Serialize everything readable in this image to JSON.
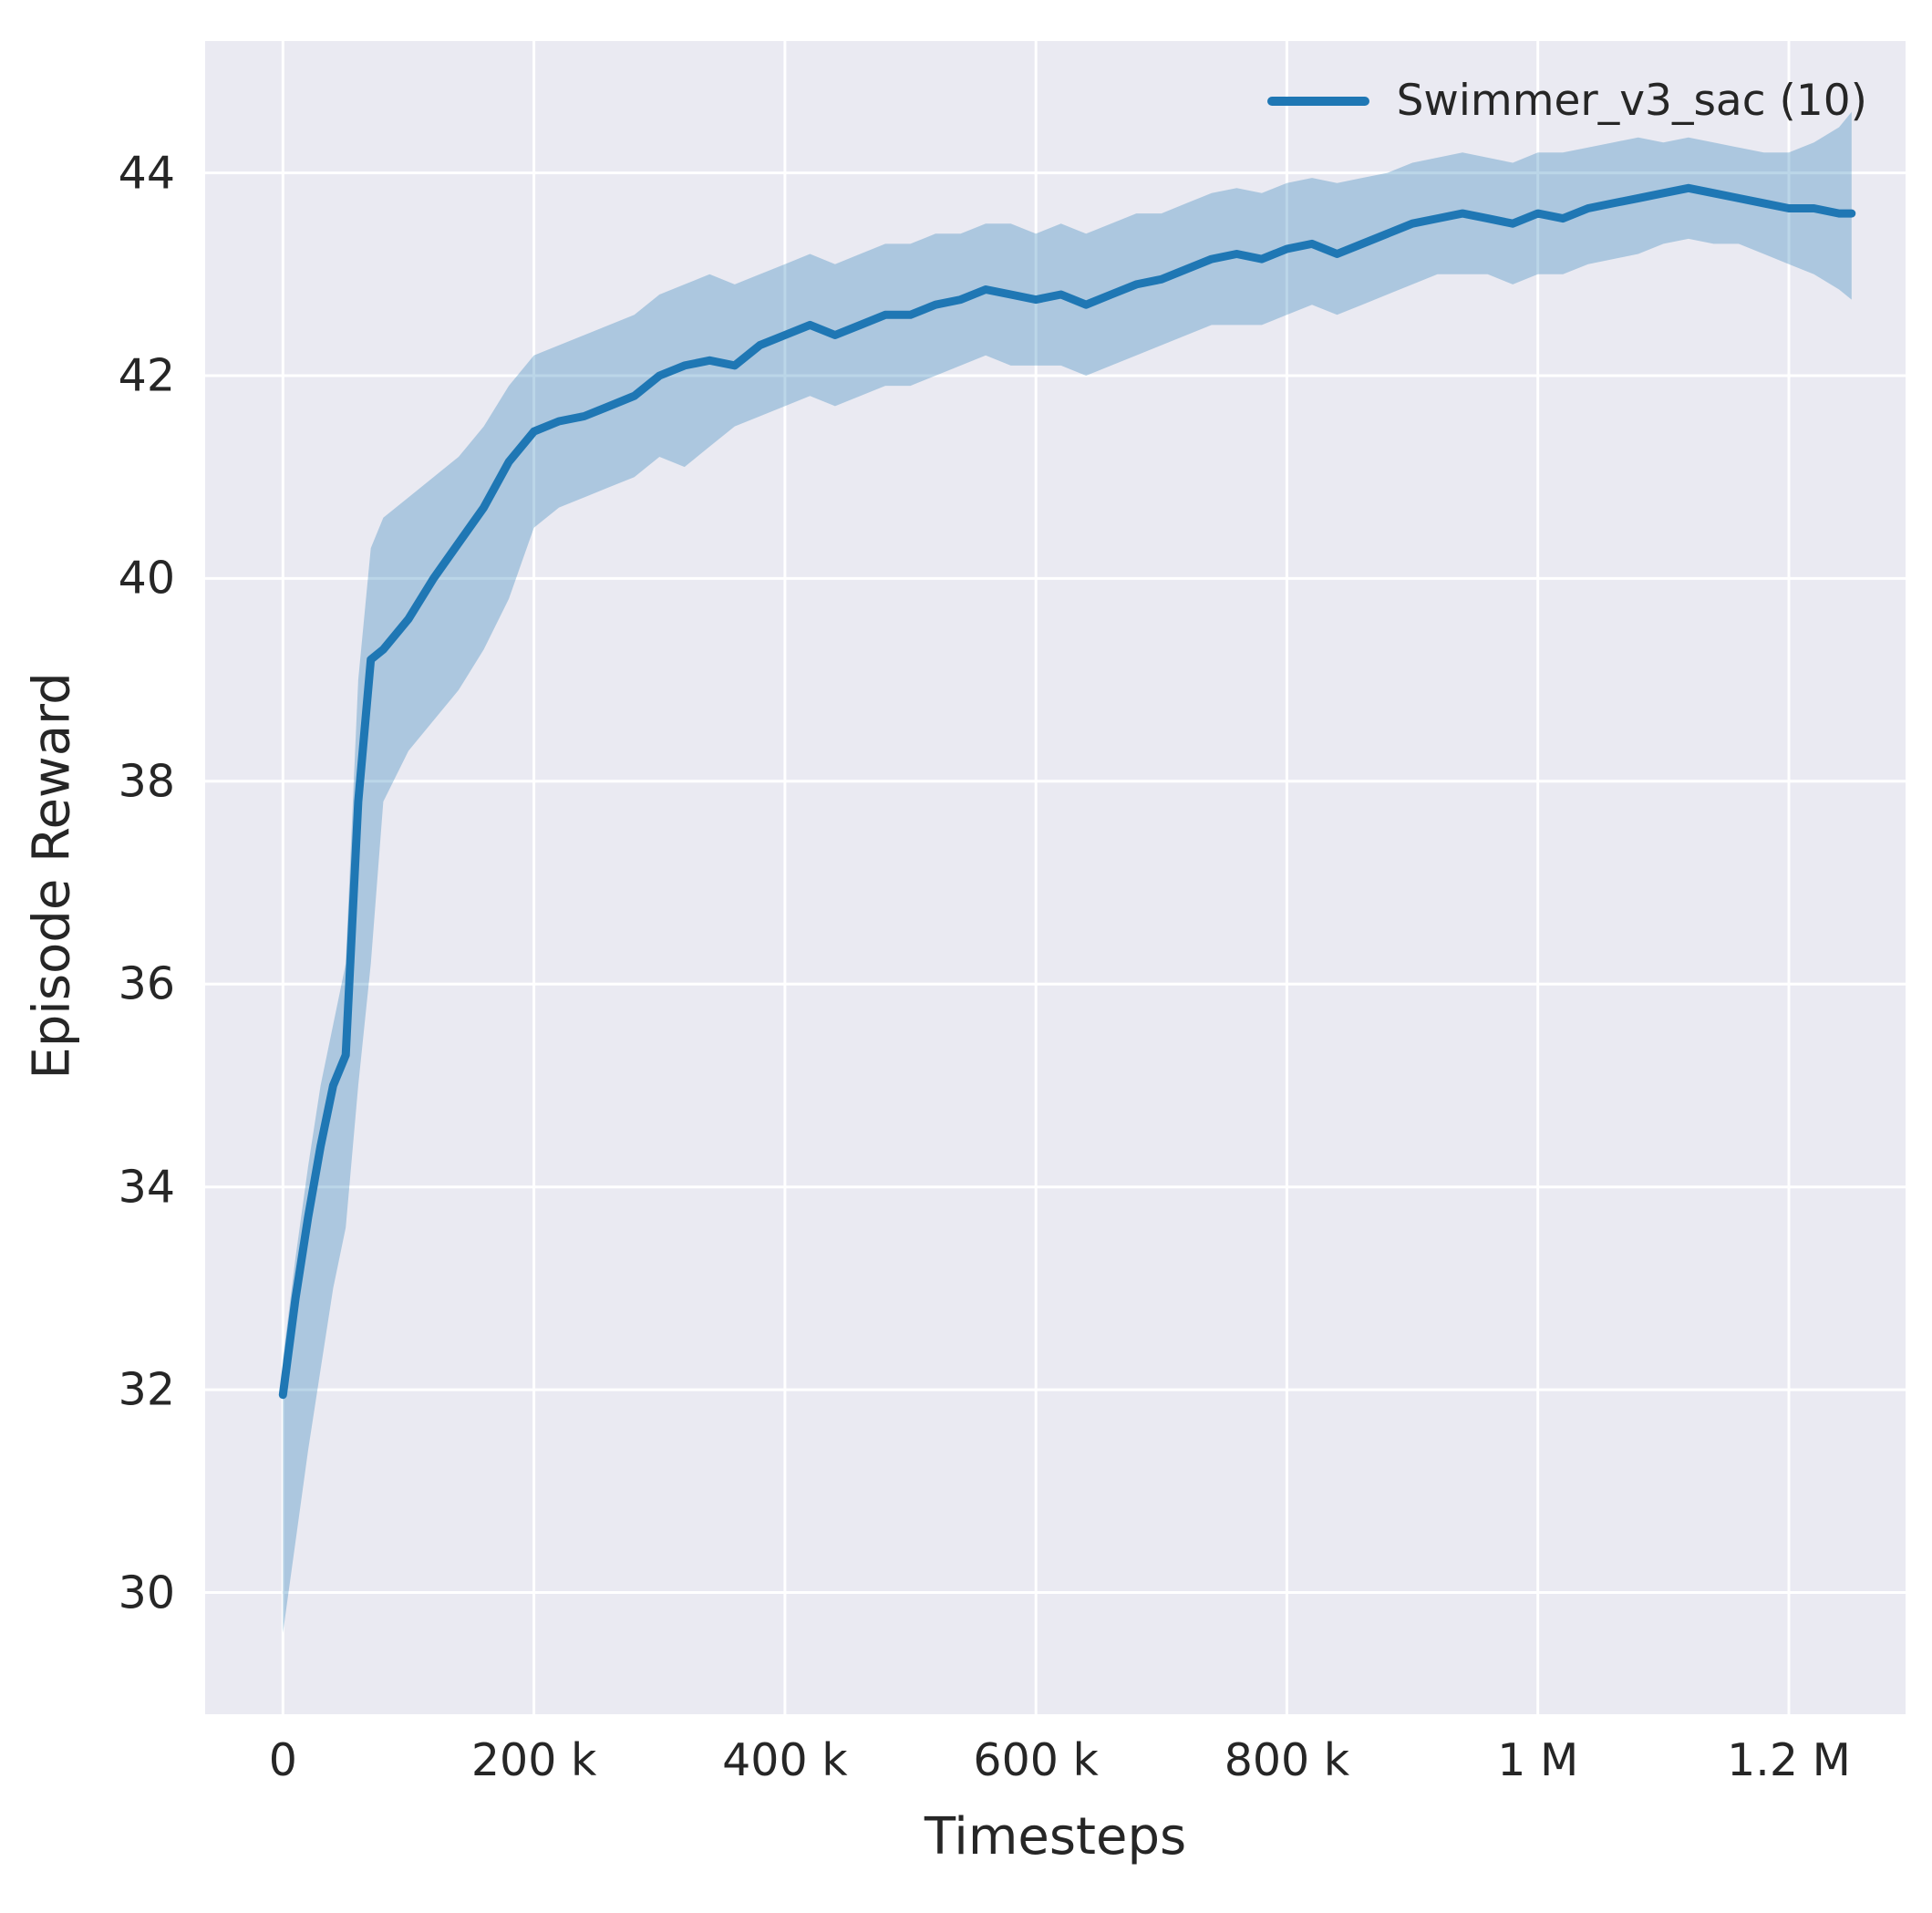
{
  "figure": {
    "background": "#ffffff",
    "plot_background": "#eaeaf2",
    "grid_color": "#ffffff",
    "text_color": "#262626"
  },
  "chart_data": {
    "type": "line",
    "title": "",
    "xlabel": "Timesteps",
    "ylabel": "Episode Reward",
    "legend": {
      "position": "upper right",
      "entries": [
        "Swimmer_v3_sac (10)"
      ]
    },
    "line_color": "#1f77b4",
    "band_color": "#1f77b4",
    "band_opacity": 0.3,
    "grid": true,
    "xlim": [
      -62000,
      1293000
    ],
    "ylim": [
      28.8,
      45.3
    ],
    "xticks": {
      "values": [
        0,
        200000,
        400000,
        600000,
        800000,
        1000000,
        1200000
      ],
      "labels": [
        "0",
        "200 k",
        "400 k",
        "600 k",
        "800 k",
        "1 M",
        "1.2 M"
      ]
    },
    "yticks": {
      "values": [
        30,
        32,
        34,
        36,
        38,
        40,
        42,
        44
      ],
      "labels": [
        "30",
        "32",
        "34",
        "36",
        "38",
        "40",
        "42",
        "44"
      ]
    },
    "x": [
      0,
      10000,
      20000,
      30000,
      40000,
      50000,
      60000,
      70000,
      80000,
      100000,
      120000,
      140000,
      160000,
      180000,
      200000,
      220000,
      240000,
      260000,
      280000,
      300000,
      320000,
      340000,
      360000,
      380000,
      400000,
      420000,
      440000,
      460000,
      480000,
      500000,
      520000,
      540000,
      560000,
      580000,
      600000,
      620000,
      640000,
      660000,
      680000,
      700000,
      720000,
      740000,
      760000,
      780000,
      800000,
      820000,
      840000,
      860000,
      880000,
      900000,
      920000,
      940000,
      960000,
      980000,
      1000000,
      1020000,
      1040000,
      1060000,
      1080000,
      1100000,
      1120000,
      1140000,
      1160000,
      1180000,
      1200000,
      1220000,
      1240000,
      1250000
    ],
    "series": [
      {
        "name": "Swimmer_v3_sac (10)",
        "values": [
          31.95,
          32.9,
          33.7,
          34.4,
          35.0,
          35.3,
          37.8,
          39.2,
          39.3,
          39.6,
          40.0,
          40.35,
          40.7,
          41.15,
          41.45,
          41.55,
          41.6,
          41.7,
          41.8,
          42.0,
          42.1,
          42.15,
          42.1,
          42.3,
          42.4,
          42.5,
          42.4,
          42.5,
          42.6,
          42.6,
          42.7,
          42.75,
          42.85,
          42.8,
          42.75,
          42.8,
          42.7,
          42.8,
          42.9,
          42.95,
          43.05,
          43.15,
          43.2,
          43.15,
          43.25,
          43.3,
          43.2,
          43.3,
          43.4,
          43.5,
          43.55,
          43.6,
          43.55,
          43.5,
          43.6,
          43.55,
          43.65,
          43.7,
          43.75,
          43.8,
          43.85,
          43.8,
          43.75,
          43.7,
          43.65,
          43.65,
          43.6,
          43.6
        ]
      }
    ],
    "band": {
      "lower": [
        29.6,
        30.5,
        31.4,
        32.2,
        33.0,
        33.6,
        35.0,
        36.2,
        37.8,
        38.3,
        38.6,
        38.9,
        39.3,
        39.8,
        40.5,
        40.7,
        40.8,
        40.9,
        41.0,
        41.2,
        41.1,
        41.3,
        41.5,
        41.6,
        41.7,
        41.8,
        41.7,
        41.8,
        41.9,
        41.9,
        42.0,
        42.1,
        42.2,
        42.1,
        42.1,
        42.1,
        42.0,
        42.1,
        42.2,
        42.3,
        42.4,
        42.5,
        42.5,
        42.5,
        42.6,
        42.7,
        42.6,
        42.7,
        42.8,
        42.9,
        43.0,
        43.0,
        43.0,
        42.9,
        43.0,
        43.0,
        43.1,
        43.15,
        43.2,
        43.3,
        43.35,
        43.3,
        43.3,
        43.2,
        43.1,
        43.0,
        42.85,
        42.75
      ],
      "upper": [
        32.3,
        33.3,
        34.2,
        35.0,
        35.6,
        36.2,
        39.0,
        40.3,
        40.6,
        40.8,
        41.0,
        41.2,
        41.5,
        41.9,
        42.2,
        42.3,
        42.4,
        42.5,
        42.6,
        42.8,
        42.9,
        43.0,
        42.9,
        43.0,
        43.1,
        43.2,
        43.1,
        43.2,
        43.3,
        43.3,
        43.4,
        43.4,
        43.5,
        43.5,
        43.4,
        43.5,
        43.4,
        43.5,
        43.6,
        43.6,
        43.7,
        43.8,
        43.85,
        43.8,
        43.9,
        43.95,
        43.9,
        43.95,
        44.0,
        44.1,
        44.15,
        44.2,
        44.15,
        44.1,
        44.2,
        44.2,
        44.25,
        44.3,
        44.35,
        44.3,
        44.35,
        44.3,
        44.25,
        44.2,
        44.2,
        44.3,
        44.45,
        44.6
      ]
    }
  }
}
